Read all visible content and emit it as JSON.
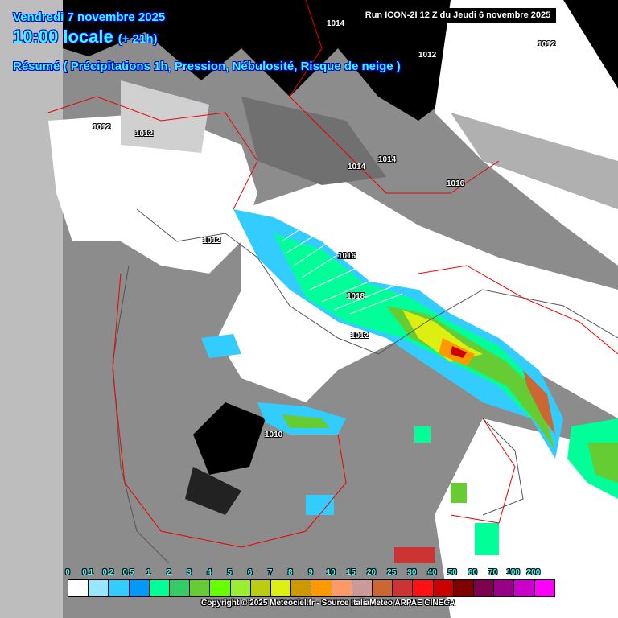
{
  "header": {
    "date": "Vendredi 7 novembre 2025",
    "time": "10:00 locale",
    "offset": "(+ 21h)",
    "summary": "Résumé ( Précipitations 1h,  Pression, Nébulosité, Risque de neige )",
    "run": "Run ICON-2I 12 Z du Jeudi 6 novembre 2025"
  },
  "isobars": [
    {
      "label": "1014"
    },
    {
      "label": "1012"
    },
    {
      "label": "1012"
    },
    {
      "label": "1012"
    },
    {
      "label": "1012"
    },
    {
      "label": "1014"
    },
    {
      "label": "1014"
    },
    {
      "label": "1016"
    },
    {
      "label": "1012"
    },
    {
      "label": "1016"
    },
    {
      "label": "1018"
    },
    {
      "label": "1012"
    },
    {
      "label": "1010"
    }
  ],
  "legend": {
    "labels": [
      "0",
      "0.1",
      "0.2",
      "0.5",
      "1",
      "2",
      "3",
      "4",
      "5",
      "6",
      "7",
      "8",
      "9",
      "10",
      "15",
      "20",
      "25",
      "30",
      "40",
      "50",
      "60",
      "70",
      "100",
      "200"
    ],
    "colors": [
      "#ffffff",
      "#99e6ff",
      "#33ccff",
      "#0099ff",
      "#00ff99",
      "#33cc66",
      "#66cc33",
      "#66ff00",
      "#99ee33",
      "#bbcc11",
      "#ddee11",
      "#cc9900",
      "#ff9900",
      "#ff9966",
      "#cc9999",
      "#cc6633",
      "#cc3333",
      "#ff1111",
      "#cc0000",
      "#800000",
      "#800050",
      "#990088",
      "#cc00cc",
      "#ff00ff"
    ]
  },
  "copyright": "Copyright © 2025 Meteociel.fr - Source ItaliaMeteo ARPAE CINECA"
}
